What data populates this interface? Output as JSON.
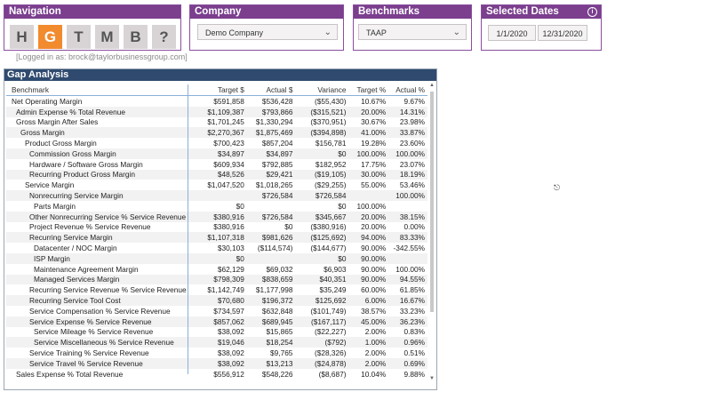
{
  "navigation": {
    "title": "Navigation",
    "buttons": [
      "H",
      "G",
      "T",
      "M",
      "B",
      "?"
    ]
  },
  "company": {
    "title": "Company",
    "selected": "Demo Company"
  },
  "benchmarks": {
    "title": "Benchmarks",
    "selected": "TAAP"
  },
  "dates": {
    "title": "Selected Dates",
    "start": "1/1/2020",
    "end": "12/31/2020"
  },
  "login_text": "[Logged in as: brock@taylorbusinessgroup.com]",
  "gap_analysis": {
    "title": "Gap Analysis",
    "columns": [
      "Benchmark",
      "Target $",
      "Actual $",
      "Variance",
      "Target %",
      "Actual %"
    ],
    "rows": [
      {
        "name": "Net Operating Margin",
        "indent": 0,
        "target": "$591,858",
        "actual": "$536,428",
        "variance": "($55,430)",
        "tpct": "10.67%",
        "apct": "9.67%"
      },
      {
        "name": "Admin Expense % Total Revenue",
        "indent": 1,
        "target": "$1,109,387",
        "actual": "$793,866",
        "variance": "($315,521)",
        "tpct": "20.00%",
        "apct": "14.31%"
      },
      {
        "name": "Gross Margin After Sales",
        "indent": 1,
        "target": "$1,701,245",
        "actual": "$1,330,294",
        "variance": "($370,951)",
        "tpct": "30.67%",
        "apct": "23.98%"
      },
      {
        "name": "Gross Margin",
        "indent": 2,
        "target": "$2,270,367",
        "actual": "$1,875,469",
        "variance": "($394,898)",
        "tpct": "41.00%",
        "apct": "33.87%"
      },
      {
        "name": "Product Gross Margin",
        "indent": 3,
        "target": "$700,423",
        "actual": "$857,204",
        "variance": "$156,781",
        "tpct": "19.28%",
        "apct": "23.60%"
      },
      {
        "name": "Commission Gross Margin",
        "indent": 4,
        "target": "$34,897",
        "actual": "$34,897",
        "variance": "$0",
        "tpct": "100.00%",
        "apct": "100.00%"
      },
      {
        "name": "Hardware / Software Gross Margin",
        "indent": 4,
        "target": "$609,934",
        "actual": "$792,885",
        "variance": "$182,952",
        "tpct": "17.75%",
        "apct": "23.07%"
      },
      {
        "name": "Recurring Product Gross Margin",
        "indent": 4,
        "target": "$48,526",
        "actual": "$29,421",
        "variance": "($19,105)",
        "tpct": "30.00%",
        "apct": "18.19%"
      },
      {
        "name": "Service Margin",
        "indent": 3,
        "target": "$1,047,520",
        "actual": "$1,018,265",
        "variance": "($29,255)",
        "tpct": "55.00%",
        "apct": "53.46%"
      },
      {
        "name": "Nonrecurring Service Margin",
        "indent": 4,
        "target": "",
        "actual": "$726,584",
        "variance": "$726,584",
        "tpct": "",
        "apct": "100.00%"
      },
      {
        "name": "Parts Margin",
        "indent": 5,
        "target": "$0",
        "actual": "",
        "variance": "$0",
        "tpct": "100.00%",
        "apct": ""
      },
      {
        "name": "Other Nonrecurring Service % Service Revenue",
        "indent": 4,
        "target": "$380,916",
        "actual": "$726,584",
        "variance": "$345,667",
        "tpct": "20.00%",
        "apct": "38.15%"
      },
      {
        "name": "Project Revenue % Service Revenue",
        "indent": 4,
        "target": "$380,916",
        "actual": "$0",
        "variance": "($380,916)",
        "tpct": "20.00%",
        "apct": "0.00%"
      },
      {
        "name": "Recurring Service Margin",
        "indent": 4,
        "target": "$1,107,318",
        "actual": "$981,626",
        "variance": "($125,692)",
        "tpct": "94.00%",
        "apct": "83.33%"
      },
      {
        "name": "Datacenter / NOC Margin",
        "indent": 5,
        "target": "$30,103",
        "actual": "($114,574)",
        "variance": "($144,677)",
        "tpct": "90.00%",
        "apct": "-342.55%"
      },
      {
        "name": "ISP Margin",
        "indent": 5,
        "target": "$0",
        "actual": "",
        "variance": "$0",
        "tpct": "90.00%",
        "apct": ""
      },
      {
        "name": "Maintenance Agreement Margin",
        "indent": 5,
        "target": "$62,129",
        "actual": "$69,032",
        "variance": "$6,903",
        "tpct": "90.00%",
        "apct": "100.00%"
      },
      {
        "name": "Managed Services Margin",
        "indent": 5,
        "target": "$798,309",
        "actual": "$838,659",
        "variance": "$40,351",
        "tpct": "90.00%",
        "apct": "94.55%"
      },
      {
        "name": "Recurring Service Revenue % Service Revenue",
        "indent": 4,
        "target": "$1,142,749",
        "actual": "$1,177,998",
        "variance": "$35,249",
        "tpct": "60.00%",
        "apct": "61.85%"
      },
      {
        "name": "Recurring Service Tool Cost",
        "indent": 4,
        "target": "$70,680",
        "actual": "$196,372",
        "variance": "$125,692",
        "tpct": "6.00%",
        "apct": "16.67%"
      },
      {
        "name": "Service Compensation % Service Revenue",
        "indent": 4,
        "target": "$734,597",
        "actual": "$632,848",
        "variance": "($101,749)",
        "tpct": "38.57%",
        "apct": "33.23%"
      },
      {
        "name": "Service Expense % Service Revenue",
        "indent": 4,
        "target": "$857,062",
        "actual": "$689,945",
        "variance": "($167,117)",
        "tpct": "45.00%",
        "apct": "36.23%"
      },
      {
        "name": "Service Mileage % Service Revenue",
        "indent": 5,
        "target": "$38,092",
        "actual": "$15,865",
        "variance": "($22,227)",
        "tpct": "2.00%",
        "apct": "0.83%"
      },
      {
        "name": "Service Miscellaneous % Service Revenue",
        "indent": 5,
        "target": "$19,046",
        "actual": "$18,254",
        "variance": "($792)",
        "tpct": "1.00%",
        "apct": "0.96%"
      },
      {
        "name": "Service Training % Service Revenue",
        "indent": 4,
        "target": "$38,092",
        "actual": "$9,765",
        "variance": "($28,326)",
        "tpct": "2.00%",
        "apct": "0.51%"
      },
      {
        "name": "Service Travel % Service Revenue",
        "indent": 4,
        "target": "$38,092",
        "actual": "$13,213",
        "variance": "($24,878)",
        "tpct": "2.00%",
        "apct": "0.69%"
      },
      {
        "name": "Sales Expense % Total Revenue",
        "indent": 1,
        "target": "$556,912",
        "actual": "$548,226",
        "variance": "($8,687)",
        "tpct": "10.04%",
        "apct": "9.88%"
      }
    ]
  }
}
